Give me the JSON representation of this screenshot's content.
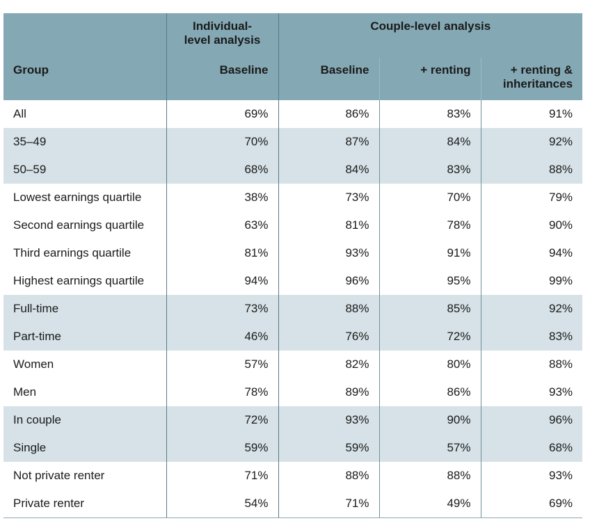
{
  "header": {
    "group_label": "Group",
    "individual_title": "Individual-level analysis",
    "individual_line1": "Individual-",
    "individual_line2": "level analysis",
    "couple_title": "Couple-level analysis",
    "cols": [
      "Baseline",
      "Baseline",
      "+ renting",
      "+ renting & inheritances"
    ],
    "col4_line1": "+ renting &",
    "col4_line2": "inheritances"
  },
  "rows": [
    {
      "group": "All",
      "values": [
        "69%",
        "86%",
        "83%",
        "91%"
      ],
      "shaded": false
    },
    {
      "group": "35–49",
      "values": [
        "70%",
        "87%",
        "84%",
        "92%"
      ],
      "shaded": true
    },
    {
      "group": "50–59",
      "values": [
        "68%",
        "84%",
        "83%",
        "88%"
      ],
      "shaded": true
    },
    {
      "group": "Lowest earnings quartile",
      "values": [
        "38%",
        "73%",
        "70%",
        "79%"
      ],
      "shaded": false
    },
    {
      "group": "Second earnings quartile",
      "values": [
        "63%",
        "81%",
        "78%",
        "90%"
      ],
      "shaded": false
    },
    {
      "group": "Third earnings quartile",
      "values": [
        "81%",
        "93%",
        "91%",
        "94%"
      ],
      "shaded": false
    },
    {
      "group": "Highest earnings quartile",
      "values": [
        "94%",
        "96%",
        "95%",
        "99%"
      ],
      "shaded": false
    },
    {
      "group": "Full-time",
      "values": [
        "73%",
        "88%",
        "85%",
        "92%"
      ],
      "shaded": true
    },
    {
      "group": "Part-time",
      "values": [
        "46%",
        "76%",
        "72%",
        "83%"
      ],
      "shaded": true
    },
    {
      "group": "Women",
      "values": [
        "57%",
        "82%",
        "80%",
        "88%"
      ],
      "shaded": false
    },
    {
      "group": "Men",
      "values": [
        "78%",
        "89%",
        "86%",
        "93%"
      ],
      "shaded": false
    },
    {
      "group": "In couple",
      "values": [
        "72%",
        "93%",
        "90%",
        "96%"
      ],
      "shaded": true
    },
    {
      "group": "Single",
      "values": [
        "59%",
        "59%",
        "57%",
        "68%"
      ],
      "shaded": true
    },
    {
      "group": "Not private renter",
      "values": [
        "71%",
        "88%",
        "88%",
        "93%"
      ],
      "shaded": false
    },
    {
      "group": "Private renter",
      "values": [
        "54%",
        "71%",
        "49%",
        "69%"
      ],
      "shaded": false
    }
  ]
}
